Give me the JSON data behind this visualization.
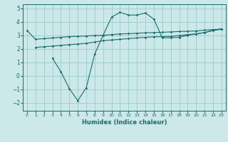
{
  "xlabel": "Humidex (Indice chaleur)",
  "ylabel": "",
  "background_color": "#cce8e8",
  "grid_color": "#99cccc",
  "line_color": "#1a6b6b",
  "xlim": [
    -0.5,
    23.5
  ],
  "ylim": [
    -2.6,
    5.3
  ],
  "yticks": [
    -2,
    -1,
    0,
    1,
    2,
    3,
    4,
    5
  ],
  "xticks": [
    0,
    1,
    2,
    3,
    4,
    5,
    6,
    7,
    8,
    9,
    10,
    11,
    12,
    13,
    14,
    15,
    16,
    17,
    18,
    19,
    20,
    21,
    22,
    23
  ],
  "line1_x": [
    0,
    1,
    2,
    3,
    4,
    5,
    6,
    7,
    8,
    9,
    10,
    11,
    12,
    13,
    14,
    15,
    16,
    17,
    18,
    19,
    20,
    21,
    22,
    23
  ],
  "line1_y": [
    3.35,
    2.7,
    2.75,
    2.8,
    2.85,
    2.9,
    2.92,
    2.95,
    2.98,
    3.0,
    3.05,
    3.1,
    3.12,
    3.15,
    3.18,
    3.2,
    3.22,
    3.25,
    3.28,
    3.3,
    3.32,
    3.38,
    3.42,
    3.45
  ],
  "line2_x": [
    1,
    2,
    3,
    4,
    5,
    6,
    7,
    8,
    9,
    10,
    11,
    12,
    13,
    14,
    15,
    16,
    17,
    18,
    19,
    20,
    21,
    22,
    23
  ],
  "line2_y": [
    2.1,
    2.15,
    2.2,
    2.25,
    2.3,
    2.35,
    2.4,
    2.5,
    2.6,
    2.65,
    2.7,
    2.75,
    2.8,
    2.85,
    2.88,
    2.9,
    2.92,
    2.98,
    3.05,
    3.1,
    3.2,
    3.35,
    3.45
  ],
  "line3_x": [
    3,
    4,
    5,
    6,
    7,
    8,
    9,
    10,
    11,
    12,
    13,
    14,
    15,
    16,
    17,
    18,
    19,
    20,
    21,
    22,
    23
  ],
  "line3_y": [
    1.3,
    0.3,
    -0.95,
    -1.85,
    -0.9,
    1.6,
    3.0,
    4.35,
    4.7,
    4.5,
    4.5,
    4.65,
    4.2,
    2.8,
    2.82,
    2.85,
    3.0,
    3.1,
    3.2,
    3.38,
    3.48
  ]
}
